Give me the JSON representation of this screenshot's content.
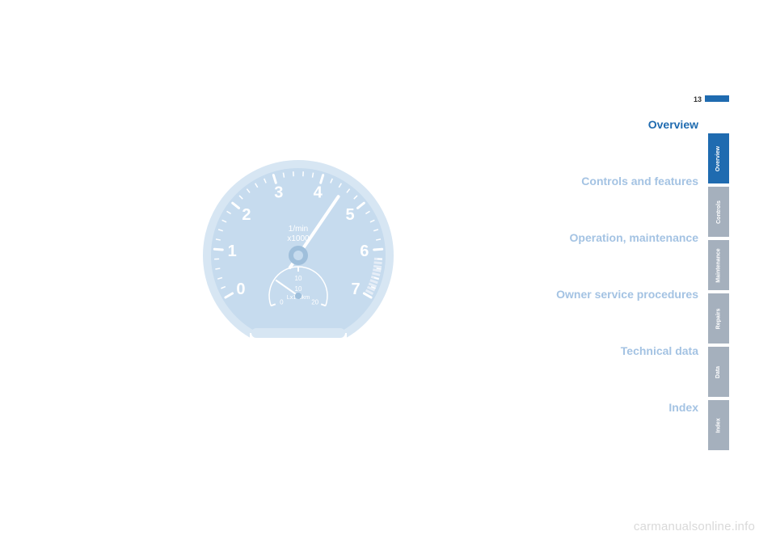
{
  "page_number": "13",
  "sections": [
    {
      "label": "Overview",
      "active": true
    },
    {
      "label": "Controls and features",
      "active": false
    },
    {
      "label": "Operation, maintenance",
      "active": false
    },
    {
      "label": "Owner service procedures",
      "active": false
    },
    {
      "label": "Technical data",
      "active": false
    },
    {
      "label": "Index",
      "active": false
    }
  ],
  "tabs": [
    {
      "label": "Overview",
      "active": true
    },
    {
      "label": "Controls",
      "active": false
    },
    {
      "label": "Maintenance",
      "active": false
    },
    {
      "label": "Repairs",
      "active": false
    },
    {
      "label": "Data",
      "active": false
    },
    {
      "label": "Index",
      "active": false
    }
  ],
  "watermark": "carmanualsonline.info",
  "gauge": {
    "type": "tachometer",
    "dial_numbers": [
      "0",
      "1",
      "2",
      "3",
      "4",
      "5",
      "6",
      "7"
    ],
    "unit_top": "1/min",
    "unit_bottom": "x1000",
    "sub_numbers": [
      "0",
      "10",
      "20"
    ],
    "sub_unit": "Lx100km",
    "needle_value_index": 4.5,
    "bg_color": "#c6dbee",
    "text_color": "#ffffff",
    "tick_color": "#ffffff",
    "redzone_color": "#e5edf7",
    "hub_color": "#9fbfdb",
    "needle_color": "#ffffff"
  },
  "colors": {
    "active_blue": "#1f6bb0",
    "inactive_blue": "#a4c3e3",
    "tab_inactive": "#a5b0bd"
  }
}
